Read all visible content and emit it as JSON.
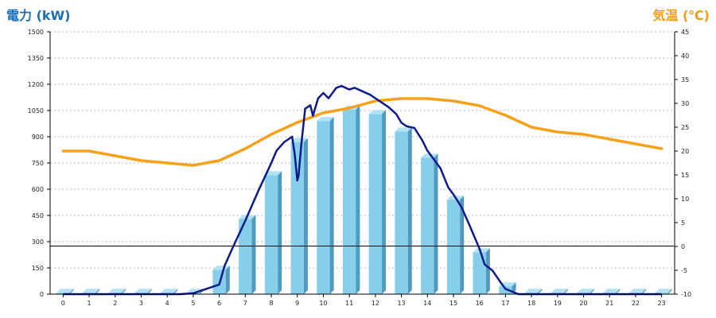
{
  "chart_data": {
    "type": "bar",
    "y_left_label": "電力 (kW)",
    "y_right_label": "気温 (℃)",
    "categories": [
      "0",
      "1",
      "2",
      "3",
      "4",
      "5",
      "6",
      "7",
      "8",
      "9",
      "10",
      "11",
      "12",
      "13",
      "14",
      "15",
      "16",
      "17",
      "18",
      "19",
      "20",
      "21",
      "22",
      "23"
    ],
    "left_axis": {
      "min": 0,
      "max": 1500,
      "ticks": [
        0,
        150,
        300,
        450,
        600,
        750,
        900,
        1050,
        1200,
        1350,
        1500
      ]
    },
    "right_axis": {
      "min": -10,
      "max": 45,
      "ticks": [
        -10,
        -5,
        0,
        5,
        10,
        15,
        20,
        25,
        30,
        35,
        40,
        45
      ]
    },
    "bars": {
      "values": [
        8,
        8,
        8,
        8,
        8,
        8,
        140,
        430,
        680,
        870,
        990,
        1055,
        1030,
        930,
        780,
        540,
        240,
        45,
        8,
        8,
        8,
        8,
        8,
        8
      ],
      "color": "#87ceeb"
    },
    "power_line": {
      "color": "#0d1a8c",
      "x": [
        0,
        4.5,
        5,
        5.5,
        6,
        6.2,
        6.5,
        7,
        7.5,
        8,
        8.2,
        8.5,
        8.8,
        8.9,
        9,
        9.05,
        9.15,
        9.3,
        9.5,
        9.6,
        9.8,
        10,
        10.2,
        10.5,
        10.7,
        11,
        11.2,
        11.5,
        11.8,
        12,
        12.3,
        12.5,
        12.8,
        13,
        13.2,
        13.5,
        13.8,
        14,
        14.5,
        14.8,
        15,
        15.3,
        15.6,
        16,
        16.2,
        16.5,
        16.8,
        17,
        17.5,
        23
      ],
      "y": [
        0,
        0,
        5,
        30,
        55,
        160,
        260,
        420,
        590,
        750,
        820,
        870,
        900,
        800,
        650,
        680,
        850,
        1060,
        1080,
        1020,
        1120,
        1150,
        1120,
        1180,
        1190,
        1170,
        1180,
        1160,
        1140,
        1120,
        1090,
        1070,
        1030,
        980,
        960,
        950,
        880,
        820,
        720,
        610,
        570,
        500,
        400,
        260,
        170,
        135,
        70,
        30,
        0,
        0
      ]
    },
    "temperature_line": {
      "color": "#f7a11a",
      "x": [
        0,
        1,
        2,
        3,
        4,
        5,
        6,
        7,
        8,
        9,
        10,
        11,
        12,
        13,
        14,
        15,
        16,
        17,
        18,
        19,
        20,
        21,
        22,
        23
      ],
      "y": [
        20,
        20,
        19,
        18,
        17.5,
        17,
        18,
        20.5,
        23.5,
        26,
        28,
        29,
        30.5,
        31,
        31,
        30.5,
        29.5,
        27.5,
        25,
        24,
        23.5,
        22.5,
        21.5,
        20.5
      ]
    },
    "threshold": {
      "value": 275
    },
    "grid": true
  }
}
